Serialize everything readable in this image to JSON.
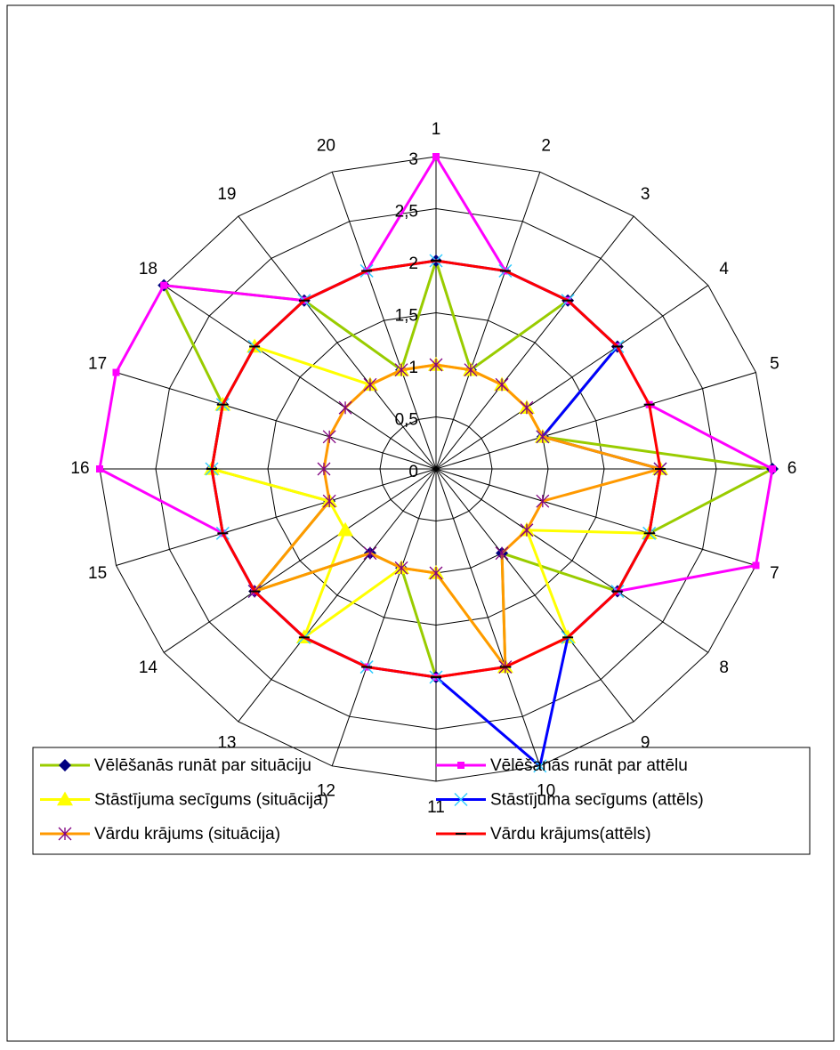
{
  "chart_data": {
    "type": "radar",
    "categories": [
      "1",
      "2",
      "3",
      "4",
      "5",
      "6",
      "7",
      "8",
      "9",
      "10",
      "11",
      "12",
      "13",
      "14",
      "15",
      "16",
      "17",
      "18",
      "19",
      "20"
    ],
    "ylim": [
      0,
      3
    ],
    "yticks": [
      0,
      {
        "value": 0.5,
        "label": "0,5"
      },
      1,
      {
        "value": 1.5,
        "label": "1,5"
      },
      2,
      {
        "value": 2.5,
        "label": "2,5"
      },
      3
    ],
    "grid": true,
    "legend": "bottom",
    "series": [
      {
        "name": "Vēlēšanās runāt par situāciju",
        "color": "#99cc00",
        "marker": "diamond",
        "marker_color": "#000080",
        "values": [
          2,
          1,
          2,
          2,
          1,
          3,
          2,
          2,
          1,
          2,
          2,
          1,
          1,
          2,
          1,
          2,
          2,
          3,
          2,
          1
        ]
      },
      {
        "name": "Vēlēšanās runāt par attēlu",
        "color": "#ff00ff",
        "marker": "square",
        "marker_color": "#ff00ff",
        "values": [
          3,
          2,
          2,
          2,
          2,
          3,
          3,
          2,
          2,
          2,
          2,
          2,
          2,
          2,
          2,
          3,
          3,
          3,
          2,
          2
        ]
      },
      {
        "name": "Stāstījuma secīgums (situācija)",
        "color": "#ffff00",
        "marker": "triangle",
        "marker_color": "#ffff00",
        "values": [
          1,
          1,
          1,
          1,
          1,
          2,
          2,
          1,
          2,
          2,
          1,
          1,
          2,
          1,
          1,
          2,
          2,
          2,
          1,
          1
        ]
      },
      {
        "name": "Stāstījuma secīgums (attēls)",
        "color": "#0000ff",
        "marker": "x",
        "marker_color": "#33ccff",
        "values": [
          2,
          2,
          2,
          2,
          1,
          2,
          2,
          2,
          2,
          3,
          2,
          2,
          2,
          2,
          2,
          2,
          2,
          2,
          2,
          2
        ]
      },
      {
        "name": "Vārdu krājums (situācija)",
        "color": "#ff9900",
        "marker": "star",
        "marker_color": "#800080",
        "values": [
          1,
          1,
          1,
          1,
          1,
          2,
          1,
          1,
          1,
          2,
          1,
          1,
          1,
          2,
          1,
          1,
          1,
          1,
          1,
          1
        ]
      },
      {
        "name": "Vārdu krājums(attēls)",
        "color": "#ff0000",
        "marker": "dash",
        "marker_color": "#000000",
        "values": [
          2,
          2,
          2,
          2,
          2,
          2,
          2,
          2,
          2,
          2,
          2,
          2,
          2,
          2,
          2,
          2,
          2,
          2,
          2,
          2
        ]
      }
    ]
  }
}
